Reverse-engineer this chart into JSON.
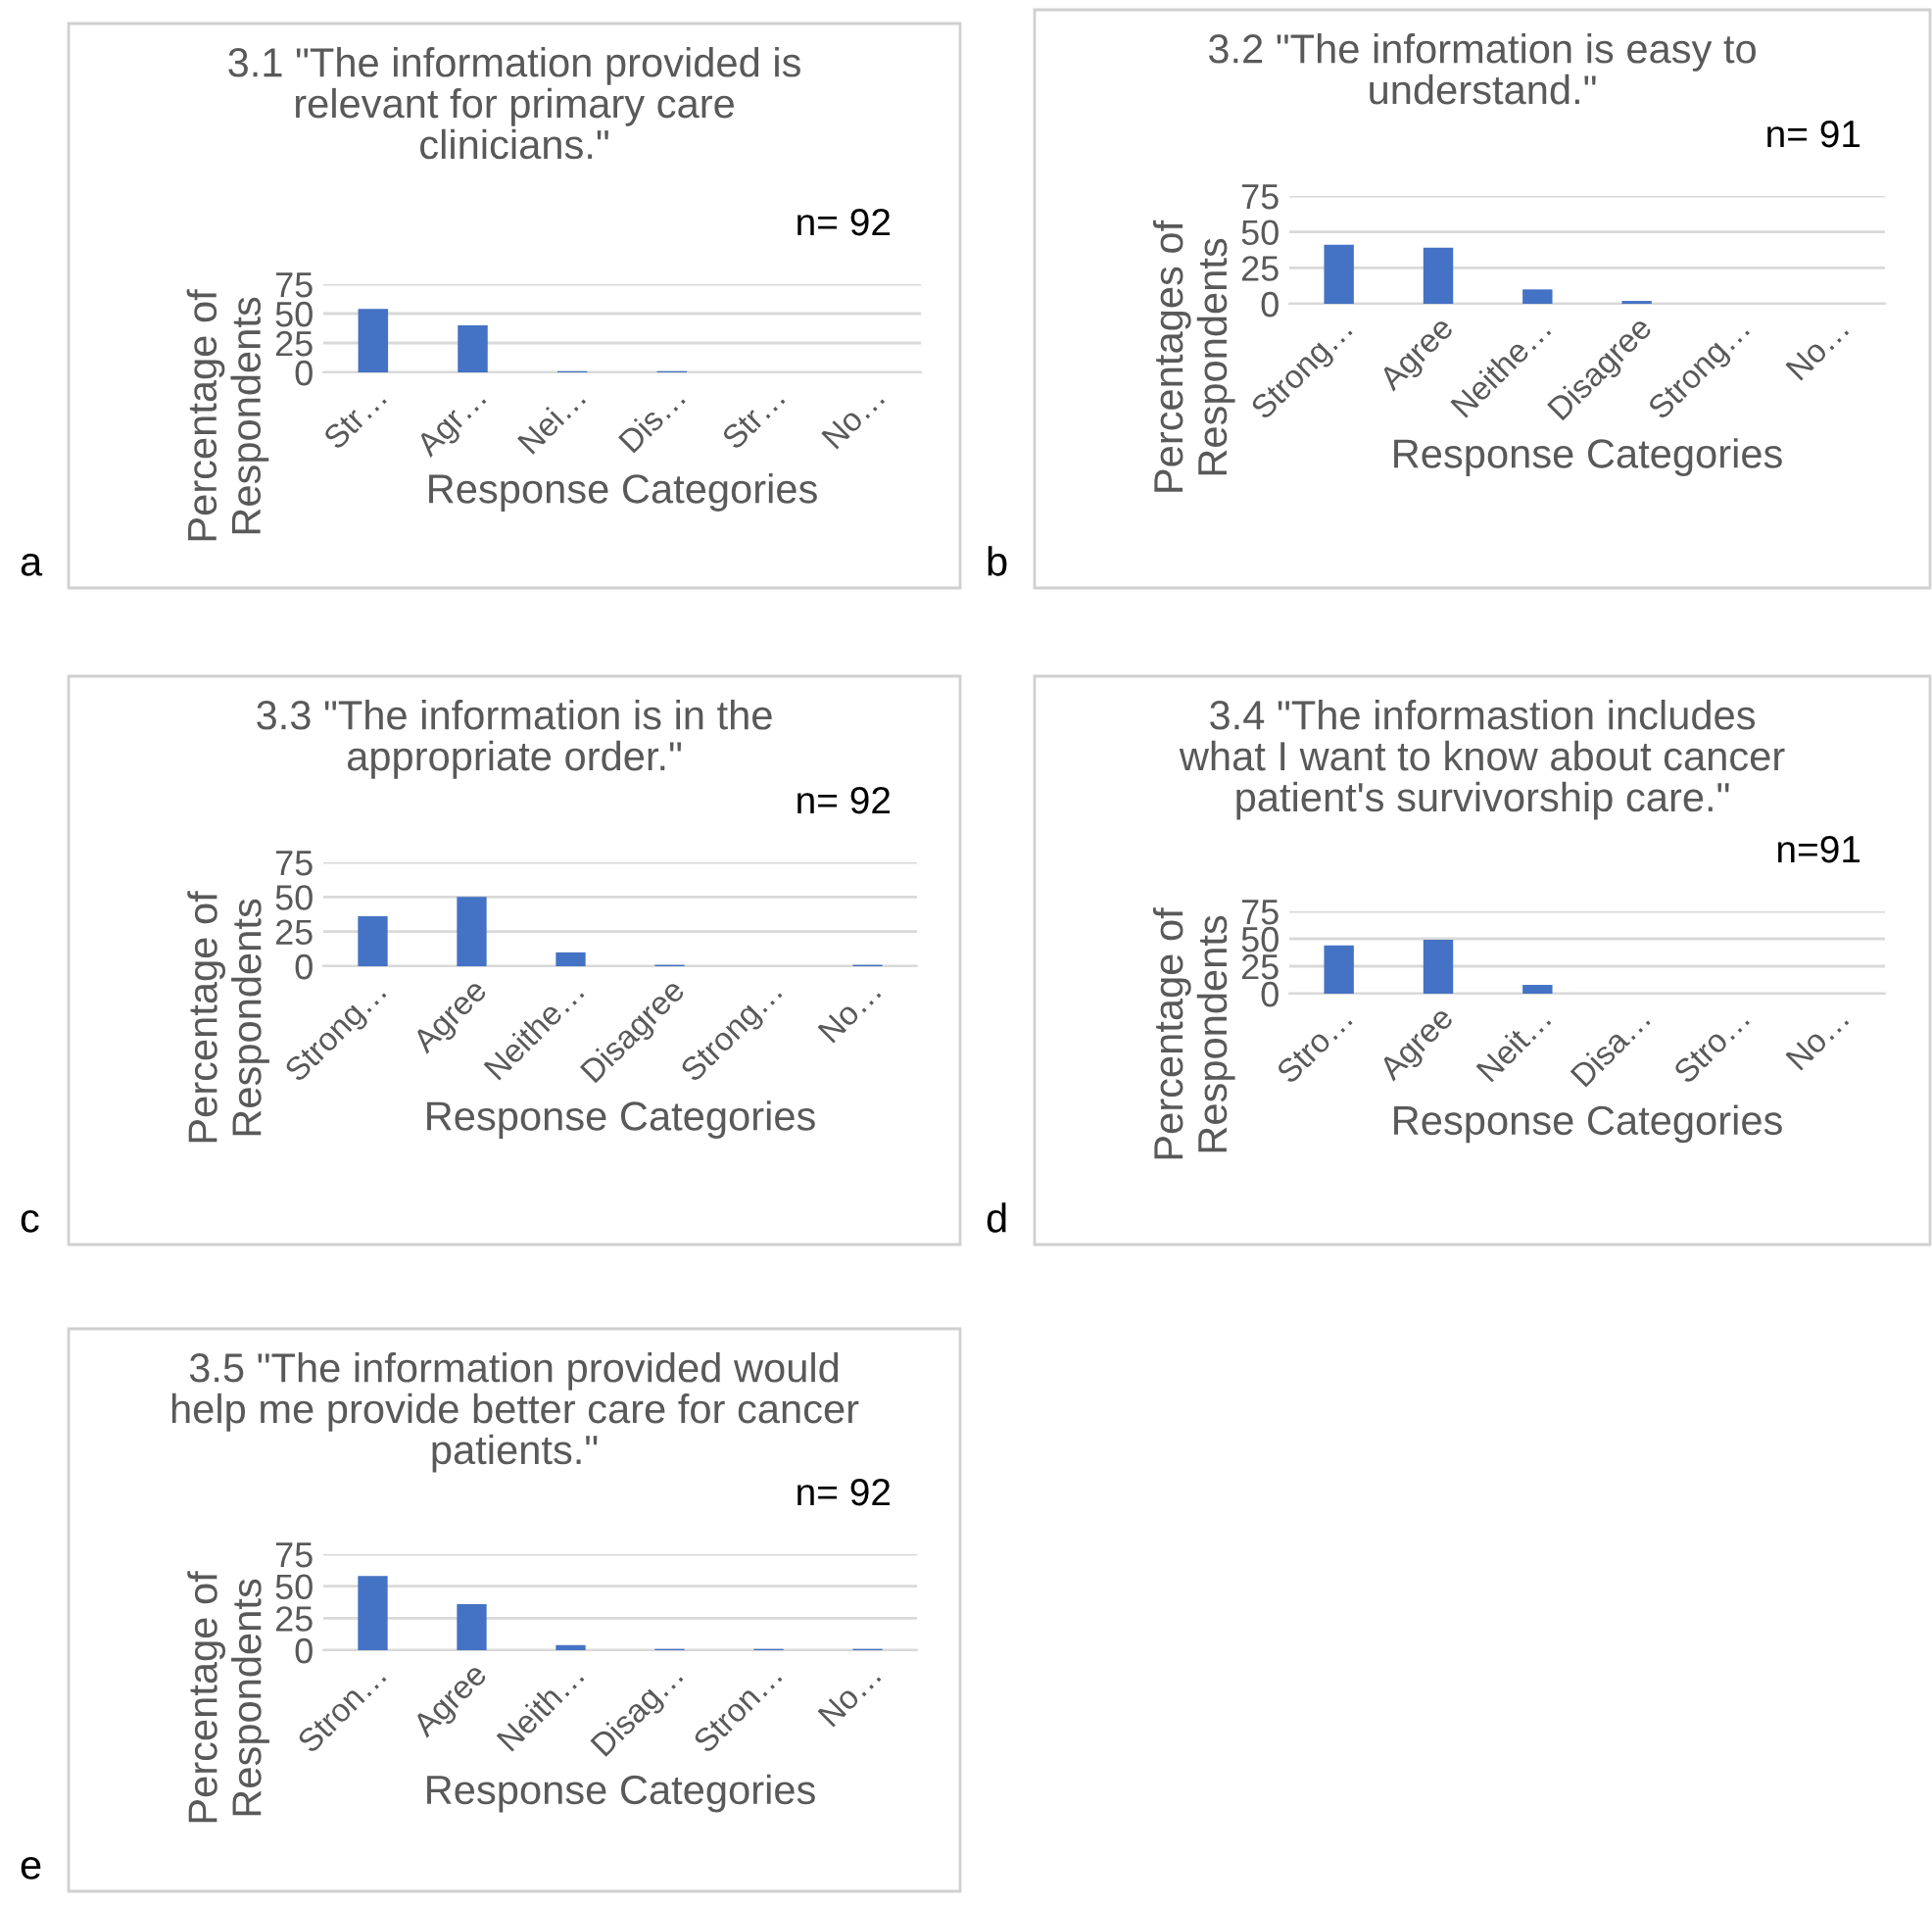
{
  "chart_data": [
    {
      "type": "bar",
      "title": "3.1 \"The information provided is\nrelevant for primary care\nclinicians.\"",
      "xlabel": "Response Categories",
      "ylabel": "Percentage of\nRespondents",
      "categories": [
        "Str…",
        "Agr…",
        "Nei…",
        "Dis…",
        "Str…",
        "No…"
      ],
      "values": [
        54,
        40,
        1,
        1,
        0,
        0
      ],
      "color": "#4472c4",
      "ylim": [
        0,
        75
      ],
      "yticks": [
        0,
        25,
        50,
        75
      ],
      "grid": "y",
      "annotations": [
        "n= 92",
        "a"
      ]
    },
    {
      "type": "bar",
      "title": "3.2 \"The information is easy to\nunderstand.\"",
      "xlabel": "Response Categories",
      "ylabel": "Percentages of\nRespondents",
      "categories": [
        "Strong…",
        "Agree",
        "Neithe…",
        "Disagree",
        "Strong…",
        "No…"
      ],
      "values": [
        41,
        39,
        10,
        2,
        0,
        0
      ],
      "color": "#4472c4",
      "ylim": [
        0,
        75
      ],
      "yticks": [
        0,
        25,
        50,
        75
      ],
      "grid": "y",
      "annotations": [
        "n= 91",
        "b"
      ]
    },
    {
      "type": "bar",
      "title": "3.3 \"The information is in the\nappropriate order.\"",
      "xlabel": "Response Categories",
      "ylabel": "Percentage of\nRespondents",
      "categories": [
        "Strong…",
        "Agree",
        "Neithe…",
        "Disagree",
        "Strong…",
        "No…"
      ],
      "values": [
        36,
        50,
        10,
        1,
        0,
        1
      ],
      "color": "#4472c4",
      "ylim": [
        0,
        75
      ],
      "yticks": [
        0,
        25,
        50,
        75
      ],
      "grid": "y",
      "annotations": [
        "n= 92",
        "c"
      ]
    },
    {
      "type": "bar",
      "title": "3.4 \"The informastion includes\nwhat I want to know about cancer\npatient's survivorship care.\"",
      "xlabel": "Response Categories",
      "ylabel": "Percentage of\nRespondents",
      "categories": [
        "Stro…",
        "Agree",
        "Neit…",
        "Disa…",
        "Stro…",
        "No…"
      ],
      "values": [
        44,
        49,
        8,
        0,
        0,
        0
      ],
      "color": "#4472c4",
      "ylim": [
        0,
        75
      ],
      "yticks": [
        0,
        25,
        50,
        75
      ],
      "grid": "y",
      "annotations": [
        "n=91",
        "d"
      ]
    },
    {
      "type": "bar",
      "title": "3.5 \"The information provided would\nhelp me provide better care for cancer\npatients.\"",
      "xlabel": "Response Categories",
      "ylabel": "Percentage of\nRespondents",
      "categories": [
        "Stron…",
        "Agree",
        "Neith…",
        "Disag…",
        "Stron…",
        "No…"
      ],
      "values": [
        58,
        36,
        4,
        1,
        1,
        1
      ],
      "color": "#4472c4",
      "ylim": [
        0,
        75
      ],
      "yticks": [
        0,
        25,
        50,
        75
      ],
      "grid": "y",
      "annotations": [
        "n= 92",
        "e"
      ]
    }
  ]
}
